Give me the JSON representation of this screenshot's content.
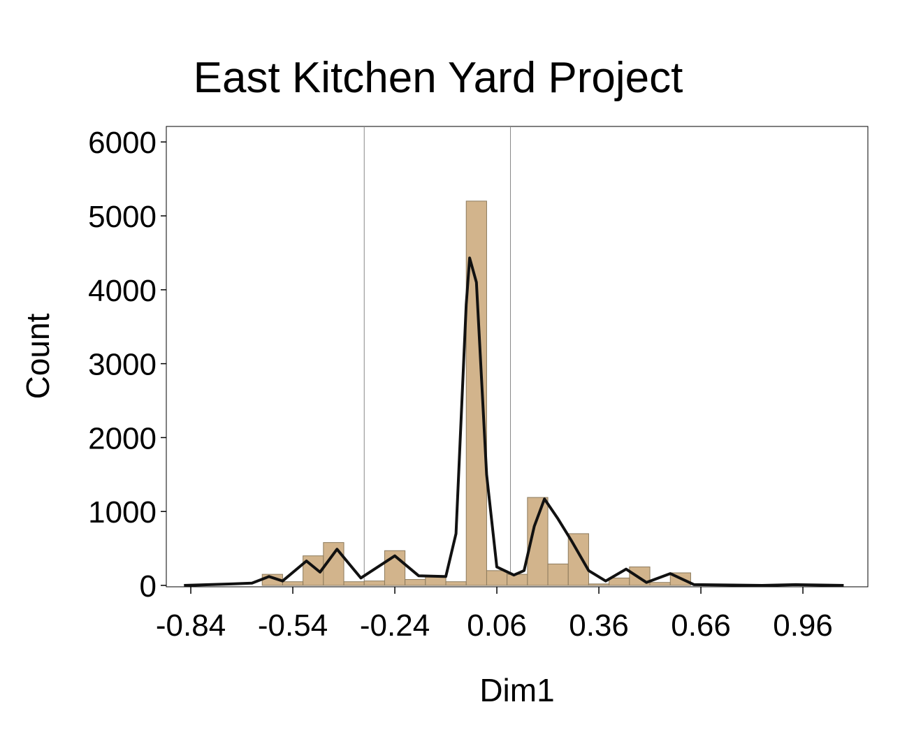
{
  "chart_data": {
    "type": "histogram",
    "title": "East Kitchen Yard Project",
    "x_label": "Dim1",
    "y_label": "Count",
    "bins": [
      -0.63,
      -0.57,
      -0.51,
      -0.45,
      -0.39,
      -0.33,
      -0.27,
      -0.21,
      -0.15,
      -0.09,
      -0.03,
      0.03,
      0.09,
      0.15,
      0.21,
      0.27,
      0.33,
      0.39,
      0.45,
      0.51,
      0.57,
      0.63
    ],
    "counts": [
      150,
      50,
      400,
      580,
      50,
      60,
      470,
      80,
      120,
      50,
      5200,
      200,
      150,
      1190,
      290,
      700,
      20,
      100,
      250,
      40,
      170
    ],
    "color": "#d2b48c",
    "edge_color": "#8c7a5c",
    "density": {
      "color": "#111111",
      "x": [
        -0.86,
        -0.72,
        -0.66,
        -0.61,
        -0.57,
        -0.5,
        -0.46,
        -0.41,
        -0.34,
        -0.24,
        -0.17,
        -0.09,
        -0.06,
        -0.03,
        -0.02,
        0.0,
        0.03,
        0.06,
        0.11,
        0.14,
        0.17,
        0.2,
        0.24,
        0.28,
        0.33,
        0.38,
        0.44,
        0.5,
        0.57,
        0.64,
        0.84,
        0.94,
        1.08
      ],
      "values": [
        0,
        20,
        30,
        120,
        60,
        330,
        180,
        490,
        100,
        400,
        130,
        120,
        700,
        3800,
        4430,
        4100,
        1500,
        250,
        140,
        200,
        800,
        1170,
        900,
        600,
        200,
        60,
        220,
        40,
        160,
        10,
        0,
        10,
        0
      ]
    },
    "reference_lines": [
      -0.33,
      0.1
    ],
    "reference_color": "#888888",
    "xlim": [
      -0.912,
      1.151
    ],
    "ylim": [
      0,
      6210
    ],
    "xticks": [
      -0.84,
      -0.54,
      -0.24,
      0.06,
      0.36,
      0.66,
      0.96
    ],
    "yticks": [
      0,
      1000,
      2000,
      3000,
      4000,
      5000,
      6000
    ]
  }
}
